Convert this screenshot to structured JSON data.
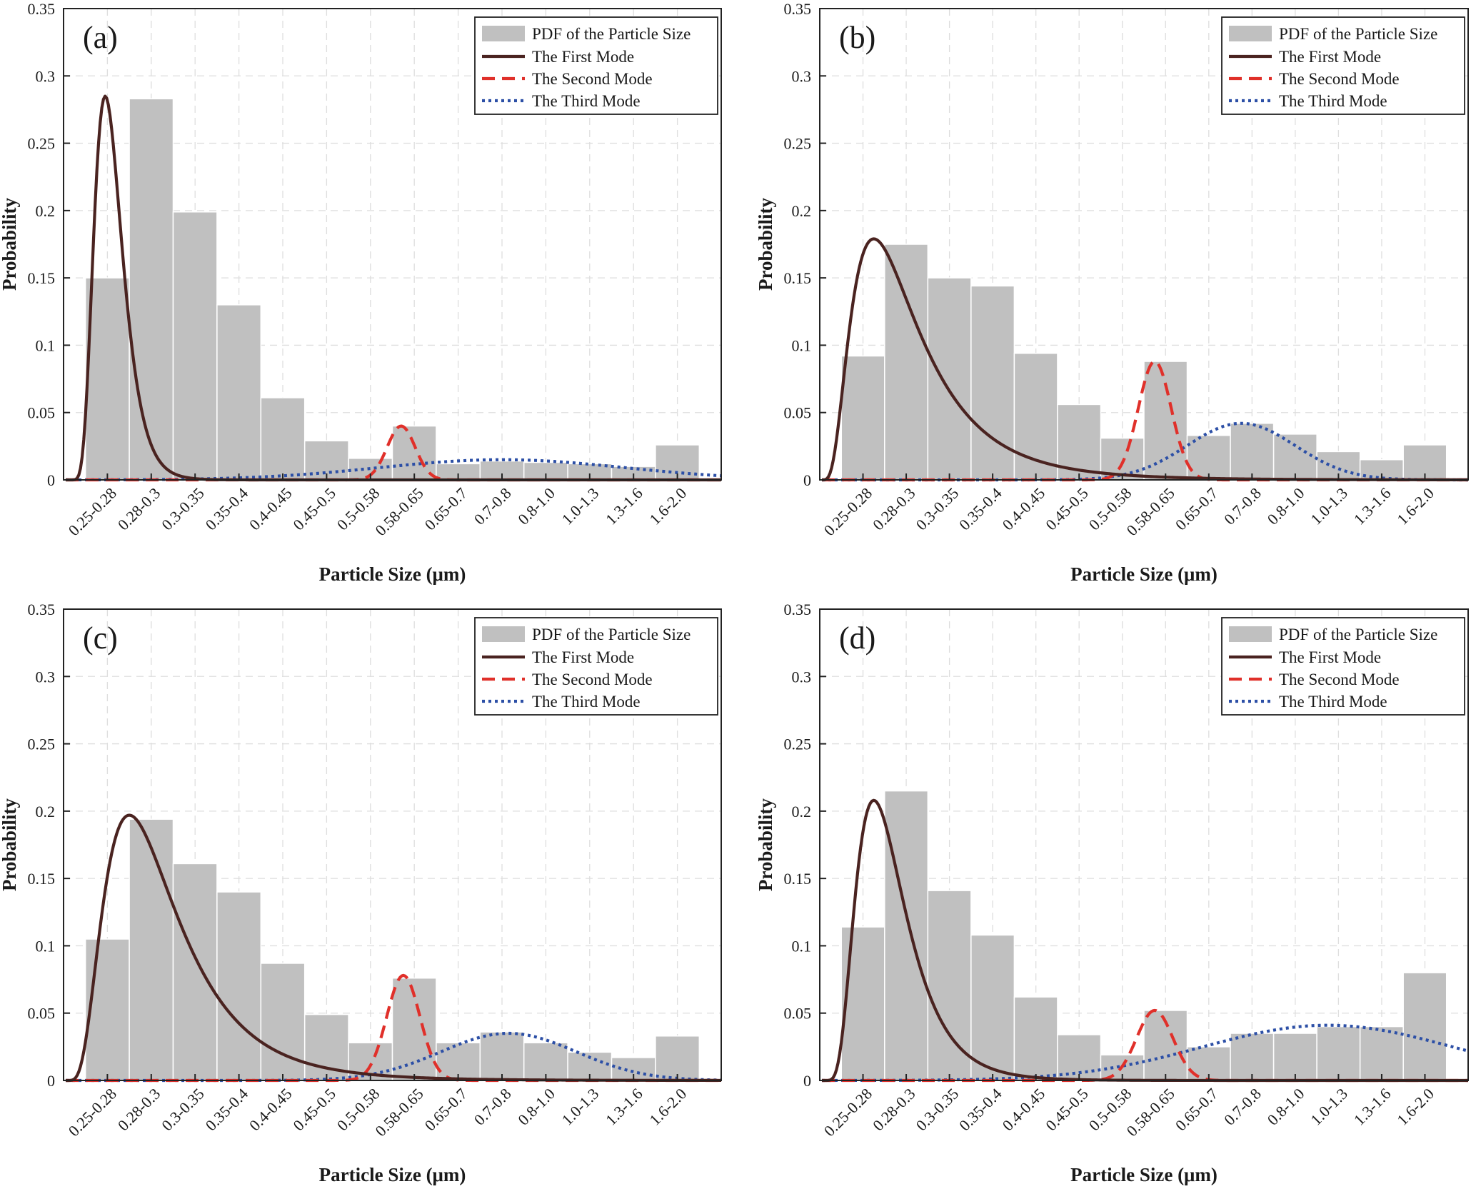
{
  "colors": {
    "bar": "#c0c0c0",
    "first_mode": "#4a2320",
    "second_mode": "#e0302a",
    "third_mode": "#2c4fa6",
    "grid": "#dedede",
    "axis": "#222222"
  },
  "legend": {
    "pdf": "PDF of the Particle Size",
    "first": "The First Mode",
    "second": "The Second Mode",
    "third": "The Third Mode"
  },
  "chart_data": [
    {
      "panel": "(a)",
      "type": "bar",
      "xlabel": "Particle Size (μm)",
      "ylabel": "Probability",
      "ylim": [
        0,
        0.35
      ],
      "yticks": [
        "0",
        "0.05",
        "0.1",
        "0.15",
        "0.2",
        "0.25",
        "0.3",
        "0.35"
      ],
      "categories": [
        "0.25-0.28",
        "0.28-0.3",
        "0.3-0.35",
        "0.35-0.4",
        "0.4-0.45",
        "0.45-0.5",
        "0.5-0.58",
        "0.58-0.65",
        "0.65-0.7",
        "0.7-0.8",
        "0.8-1.0",
        "1.0-1.3",
        "1.3-1.6",
        "1.6-2.0"
      ],
      "values": [
        0.15,
        0.283,
        0.199,
        0.13,
        0.061,
        0.029,
        0.016,
        0.04,
        0.012,
        0.014,
        0.013,
        0.012,
        0.01,
        0.026
      ],
      "modes": {
        "first": {
          "peak": 0.285,
          "peak_at": 0.95,
          "width": 0.34
        },
        "second": {
          "peak": 0.04,
          "peak_at": 7.7,
          "sigma": 0.32
        },
        "third": {
          "peak": 0.015,
          "peak_at": 10.0,
          "sigma": 2.8
        }
      }
    },
    {
      "panel": "(b)",
      "type": "bar",
      "xlabel": "Particle Size (μm)",
      "ylabel": "Probability",
      "ylim": [
        0,
        0.35
      ],
      "yticks": [
        "0",
        "0.05",
        "0.1",
        "0.15",
        "0.2",
        "0.25",
        "0.3",
        "0.35"
      ],
      "categories": [
        "0.25-0.28",
        "0.28-0.3",
        "0.3-0.35",
        "0.35-0.4",
        "0.4-0.45",
        "0.45-0.5",
        "0.5-0.58",
        "0.58-0.65",
        "0.65-0.7",
        "0.7-0.8",
        "0.8-1.0",
        "1.0-1.3",
        "1.3-1.6",
        "1.6-2.0"
      ],
      "values": [
        0.092,
        0.175,
        0.15,
        0.144,
        0.094,
        0.056,
        0.031,
        0.088,
        0.033,
        0.042,
        0.034,
        0.021,
        0.015,
        0.026
      ],
      "modes": {
        "first": {
          "peak": 0.179,
          "peak_at": 1.25,
          "width": 0.62
        },
        "second": {
          "peak": 0.088,
          "peak_at": 7.75,
          "sigma": 0.38
        },
        "third": {
          "peak": 0.042,
          "peak_at": 9.75,
          "sigma": 1.25
        }
      }
    },
    {
      "panel": "(c)",
      "type": "bar",
      "xlabel": "Particle Size (μm)",
      "ylabel": "Probability",
      "ylim": [
        0,
        0.35
      ],
      "yticks": [
        "0",
        "0.05",
        "0.1",
        "0.15",
        "0.2",
        "0.25",
        "0.3",
        "0.35"
      ],
      "categories": [
        "0.25-0.28",
        "0.28-0.3",
        "0.3-0.35",
        "0.35-0.4",
        "0.4-0.45",
        "0.45-0.5",
        "0.5-0.58",
        "0.58-0.65",
        "0.65-0.7",
        "0.7-0.8",
        "0.8-1.0",
        "1.0-1.3",
        "1.3-1.6",
        "1.6-2.0"
      ],
      "values": [
        0.105,
        0.194,
        0.161,
        0.14,
        0.087,
        0.049,
        0.028,
        0.076,
        0.028,
        0.036,
        0.028,
        0.021,
        0.017,
        0.033
      ],
      "modes": {
        "first": {
          "peak": 0.197,
          "peak_at": 1.5,
          "width": 0.56
        },
        "second": {
          "peak": 0.078,
          "peak_at": 7.75,
          "sigma": 0.38
        },
        "third": {
          "peak": 0.035,
          "peak_at": 10.15,
          "sigma": 1.55
        }
      }
    },
    {
      "panel": "(d)",
      "type": "bar",
      "xlabel": "Particle Size (μm)",
      "ylabel": "Probability",
      "ylim": [
        0,
        0.35
      ],
      "yticks": [
        "0",
        "0.05",
        "0.1",
        "0.15",
        "0.2",
        "0.25",
        "0.3",
        "0.35"
      ],
      "categories": [
        "0.25-0.28",
        "0.28-0.3",
        "0.3-0.35",
        "0.35-0.4",
        "0.4-0.45",
        "0.45-0.5",
        "0.5-0.58",
        "0.58-0.65",
        "0.65-0.7",
        "0.7-0.8",
        "0.8-1.0",
        "1.0-1.3",
        "1.3-1.6",
        "1.6-2.0"
      ],
      "values": [
        0.114,
        0.215,
        0.141,
        0.108,
        0.062,
        0.034,
        0.019,
        0.052,
        0.025,
        0.035,
        0.035,
        0.04,
        0.04,
        0.08
      ],
      "modes": {
        "first": {
          "peak": 0.208,
          "peak_at": 1.25,
          "width": 0.46
        },
        "second": {
          "peak": 0.052,
          "peak_at": 7.75,
          "sigma": 0.42
        },
        "third": {
          "peak": 0.041,
          "peak_at": 11.75,
          "sigma": 2.9
        }
      }
    }
  ]
}
